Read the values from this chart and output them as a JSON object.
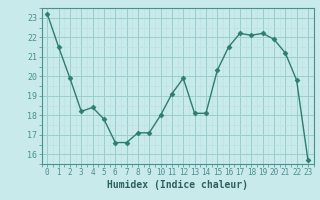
{
  "x": [
    0,
    1,
    2,
    3,
    4,
    5,
    6,
    7,
    8,
    9,
    10,
    11,
    12,
    13,
    14,
    15,
    16,
    17,
    18,
    19,
    20,
    21,
    22,
    23
  ],
  "y": [
    23.2,
    21.5,
    19.9,
    18.2,
    18.4,
    17.8,
    16.6,
    16.6,
    17.1,
    17.1,
    18.0,
    19.1,
    19.9,
    18.1,
    18.1,
    20.3,
    21.5,
    22.2,
    22.1,
    22.2,
    21.9,
    21.2,
    19.8,
    15.7
  ],
  "line_color": "#2e7d6e",
  "marker": "D",
  "marker_size": 2.5,
  "bg_color": "#c8eaea",
  "grid_color_major": "#9ccece",
  "grid_color_minor": "#b8e0e0",
  "xlabel": "Humidex (Indice chaleur)",
  "xlim": [
    -0.5,
    23.5
  ],
  "ylim": [
    15.5,
    23.5
  ],
  "yticks": [
    16,
    17,
    18,
    19,
    20,
    21,
    22,
    23
  ],
  "xticks": [
    0,
    1,
    2,
    3,
    4,
    5,
    6,
    7,
    8,
    9,
    10,
    11,
    12,
    13,
    14,
    15,
    16,
    17,
    18,
    19,
    20,
    21,
    22,
    23
  ],
  "tick_label_color": "#2e6060",
  "spine_color": "#4a9090",
  "xlabel_color": "#2e6060",
  "xlabel_fontsize": 7,
  "tick_fontsize": 5.5,
  "ytick_fontsize": 6.0
}
